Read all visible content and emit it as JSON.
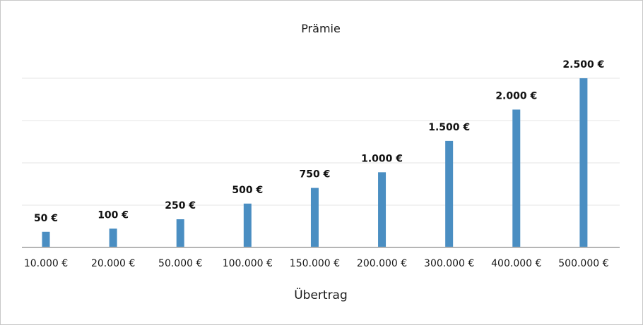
{
  "chart_data": {
    "type": "bar",
    "title": "Prämie",
    "xlabel": "Übertrag",
    "ylabel": "",
    "categories": [
      "10.000 €",
      "20.000 €",
      "50.000 €",
      "100.000 €",
      "150.000 €",
      "200.000 €",
      "300.000 €",
      "400.000 €",
      "500.000 €"
    ],
    "values": [
      50,
      100,
      250,
      500,
      750,
      1000,
      1500,
      2000,
      2500
    ],
    "data_labels": [
      "50 €",
      "100 €",
      "250 €",
      "500 €",
      "750 €",
      "1.000 €",
      "1.500 €",
      "2.000 €",
      "2.500 €"
    ],
    "ylim": [
      -200,
      2500
    ],
    "grid": true,
    "bar_color": "#4a8ec2",
    "legend": "none"
  }
}
